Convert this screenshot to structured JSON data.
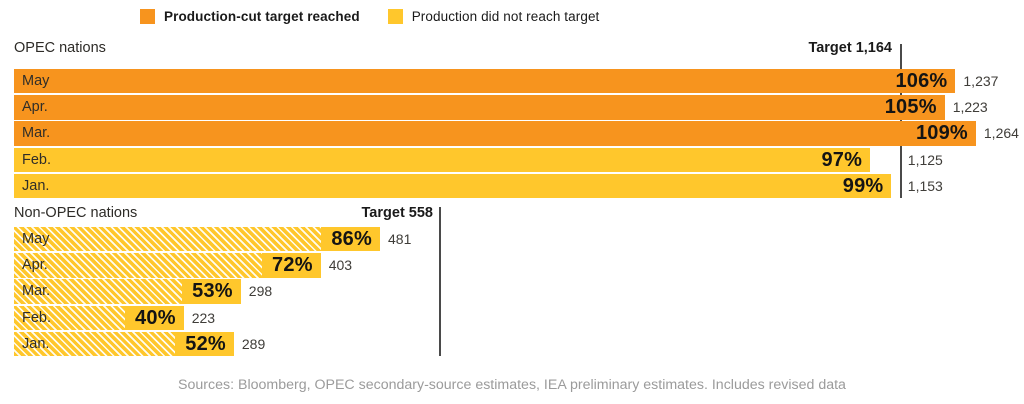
{
  "legend": {
    "items": [
      {
        "label": "Production-cut target reached",
        "color": "#F7941E",
        "bold": true
      },
      {
        "label": "Production did not reach target",
        "color": "#FFC72C",
        "bold": false
      }
    ]
  },
  "colors": {
    "reached": "#F7941E",
    "not_reached": "#FFC72C",
    "hatch_stripe": "#FFFCF0",
    "target_line": "#4a4a4a"
  },
  "chart_data": {
    "type": "bar",
    "orientation": "horizontal",
    "legend_position": "top",
    "grid": false,
    "sections": [
      {
        "name": "OPEC nations",
        "target_label": "Target 1,164",
        "target_value": 1164,
        "pattern": "solid",
        "categories": [
          "May",
          "Apr.",
          "Mar.",
          "Feb.",
          "Jan."
        ],
        "rows": [
          {
            "month": "May",
            "percent": "106%",
            "value": 1237,
            "value_label": "1,237",
            "reached": true
          },
          {
            "month": "Apr.",
            "percent": "105%",
            "value": 1223,
            "value_label": "1,223",
            "reached": true
          },
          {
            "month": "Mar.",
            "percent": "109%",
            "value": 1264,
            "value_label": "1,264",
            "reached": true
          },
          {
            "month": "Feb.",
            "percent": "97%",
            "value": 1125,
            "value_label": "1,125",
            "reached": false
          },
          {
            "month": "Jan.",
            "percent": "99%",
            "value": 1153,
            "value_label": "1,153",
            "reached": false
          }
        ]
      },
      {
        "name": "Non-OPEC nations",
        "target_label": "Target 558",
        "target_value": 558,
        "pattern": "diagonal-stripes",
        "categories": [
          "May",
          "Apr.",
          "Mar.",
          "Feb.",
          "Jan."
        ],
        "rows": [
          {
            "month": "May",
            "percent": "86%",
            "value": 481,
            "value_label": "481",
            "reached": false
          },
          {
            "month": "Apr.",
            "percent": "72%",
            "value": 403,
            "value_label": "403",
            "reached": false
          },
          {
            "month": "Mar.",
            "percent": "53%",
            "value": 298,
            "value_label": "298",
            "reached": false
          },
          {
            "month": "Feb.",
            "percent": "40%",
            "value": 223,
            "value_label": "223",
            "reached": false
          },
          {
            "month": "Jan.",
            "percent": "52%",
            "value": 289,
            "value_label": "289",
            "reached": false
          }
        ]
      }
    ]
  },
  "footer": {
    "source_text": "Sources: Bloomberg, OPEC secondary-source estimates, IEA preliminary estimates. Includes revised data"
  }
}
